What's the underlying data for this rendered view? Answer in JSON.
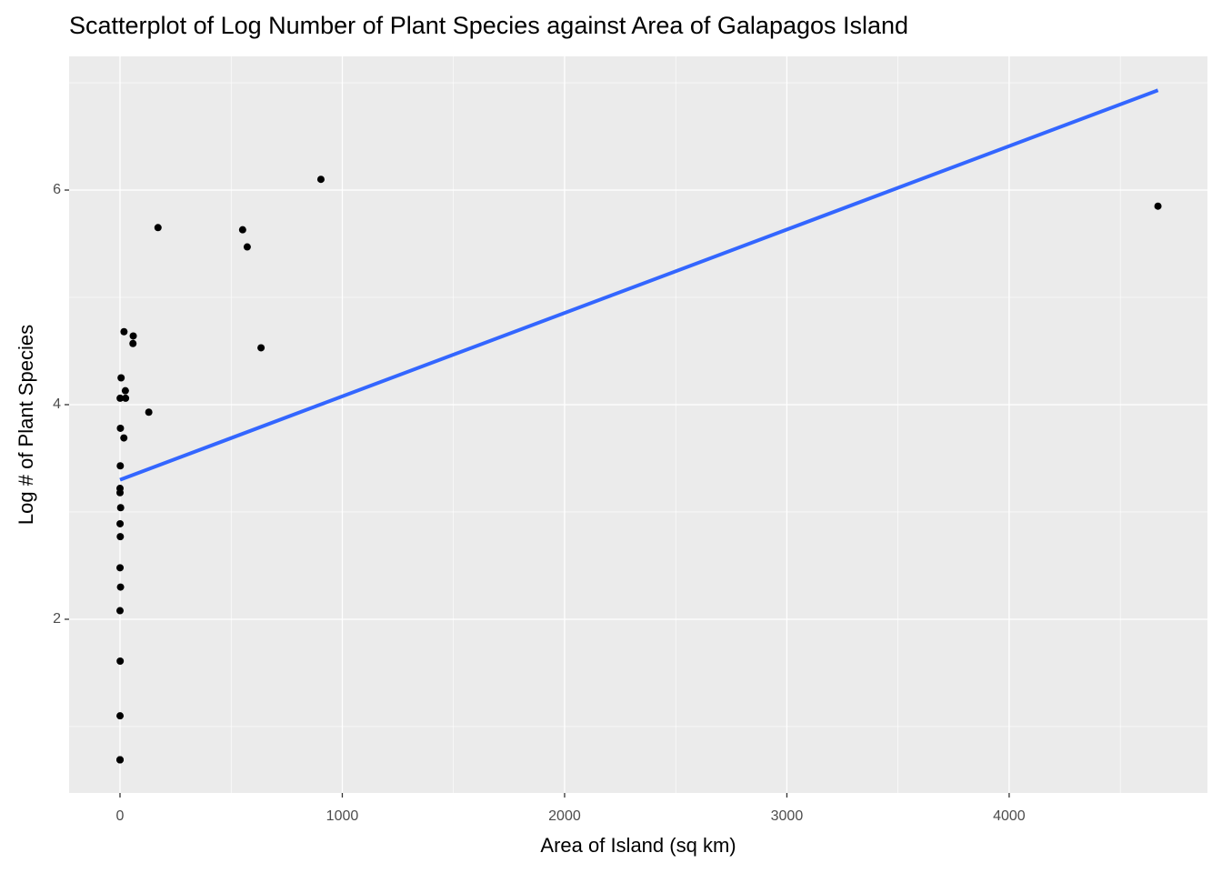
{
  "chart_data": {
    "type": "scatter",
    "title": "Scatterplot of Log Number of Plant Species against Area of Galapagos Island",
    "x_label": "Area of Island (sq km)",
    "y_label": "Log # of Plant Species",
    "x": [
      25.09,
      1.24,
      0.21,
      0.1,
      0.05,
      0.34,
      0.08,
      2.33,
      0.03,
      0.18,
      58.27,
      634.49,
      0.57,
      0.78,
      17.35,
      4669.32,
      129.49,
      0.01,
      59.56,
      17.95,
      0.23,
      4.89,
      551.62,
      572.33,
      903.82,
      24.08,
      170.92,
      1.84,
      1.24,
      2.85
    ],
    "values": [
      4.06,
      3.43,
      1.1,
      3.22,
      0.69,
      2.89,
      3.18,
      2.3,
      2.08,
      0.69,
      4.57,
      4.53,
      4.06,
      1.61,
      3.69,
      5.85,
      3.93,
      0.69,
      4.64,
      4.68,
      2.48,
      4.25,
      5.63,
      5.47,
      6.1,
      4.13,
      5.65,
      3.78,
      2.77,
      3.04
    ],
    "color": "#000000",
    "fit": {
      "x": [
        0.01,
        4669.32
      ],
      "values": [
        3.3,
        6.93
      ],
      "color": "#3366ff"
    },
    "xlim": [
      -229,
      4892
    ],
    "ylim": [
      0.381,
      7.246
    ],
    "xticks": [
      0,
      1000,
      2000,
      3000,
      4000
    ],
    "yticks": [
      2,
      4,
      6
    ],
    "grid": true
  }
}
